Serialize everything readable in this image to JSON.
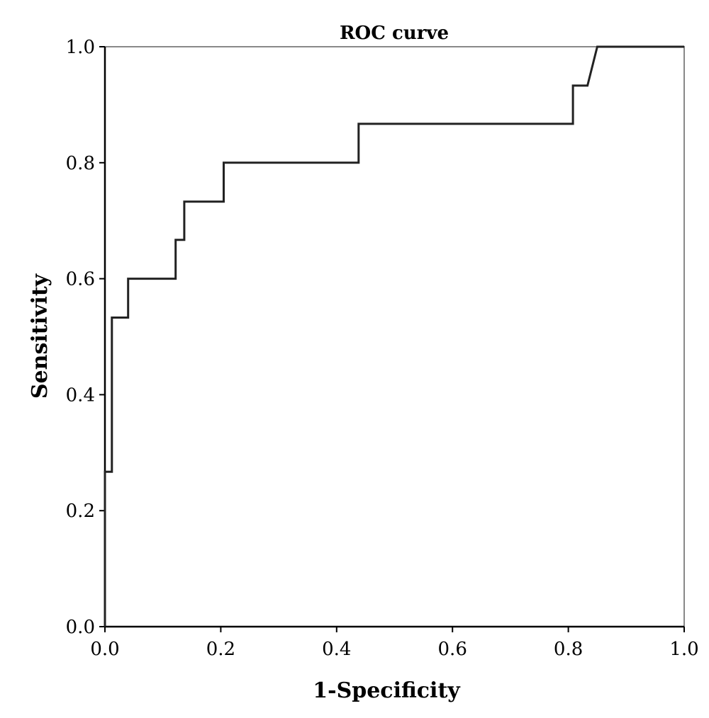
{
  "chart_data": {
    "type": "line",
    "title": "ROC curve",
    "xlabel": "1-Specificity",
    "ylabel": "Sensitivity",
    "xlim": [
      0,
      1
    ],
    "ylim": [
      0,
      1
    ],
    "xticks": [
      "0.0",
      "0.2",
      "0.4",
      "0.6",
      "0.8",
      "1.0"
    ],
    "yticks": [
      "0.0",
      "0.2",
      "0.4",
      "0.6",
      "0.8",
      "1.0"
    ],
    "grid": false,
    "series": [
      {
        "points": [
          [
            0.0,
            0.0
          ],
          [
            0.0,
            0.267
          ],
          [
            0.012,
            0.267
          ],
          [
            0.012,
            0.533
          ],
          [
            0.04,
            0.533
          ],
          [
            0.04,
            0.6
          ],
          [
            0.122,
            0.6
          ],
          [
            0.122,
            0.667
          ],
          [
            0.137,
            0.667
          ],
          [
            0.137,
            0.733
          ],
          [
            0.205,
            0.733
          ],
          [
            0.205,
            0.8
          ],
          [
            0.438,
            0.8
          ],
          [
            0.438,
            0.867
          ],
          [
            0.808,
            0.867
          ],
          [
            0.808,
            0.933
          ],
          [
            0.833,
            0.933
          ],
          [
            0.85,
            1.0
          ],
          [
            1.0,
            1.0
          ]
        ]
      }
    ]
  }
}
